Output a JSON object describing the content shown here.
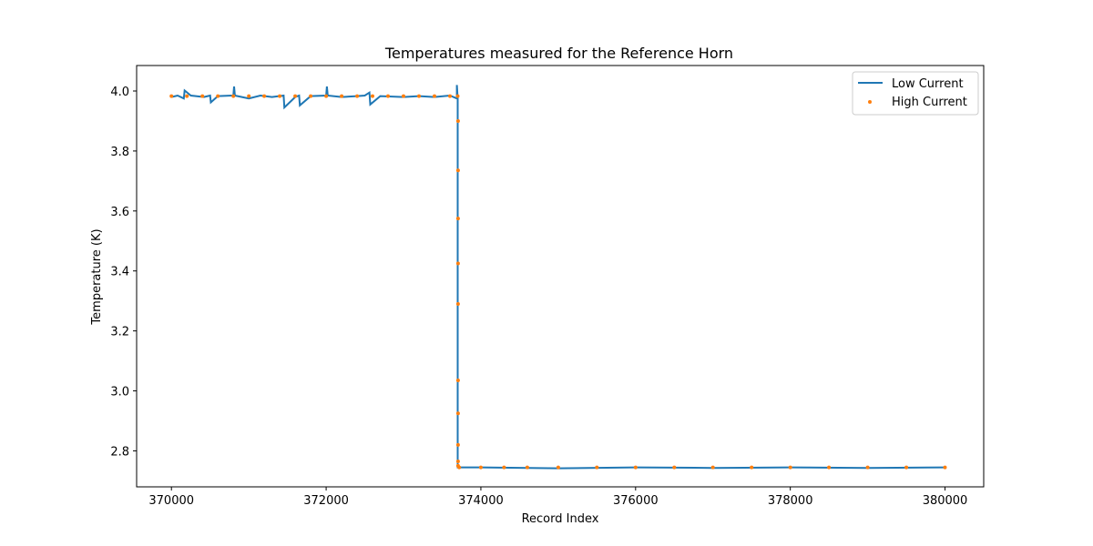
{
  "chart_data": {
    "type": "line",
    "title": "Temperatures measured for the Reference Horn",
    "xlabel": "Record Index",
    "ylabel": "Temperature (K)",
    "xlim": [
      369550,
      380500
    ],
    "ylim": [
      2.68,
      4.085
    ],
    "xticks": [
      370000,
      372000,
      374000,
      376000,
      378000,
      380000
    ],
    "xtick_labels": [
      "370000",
      "372000",
      "374000",
      "376000",
      "378000",
      "380000"
    ],
    "yticks": [
      2.8,
      3.0,
      3.2,
      3.4,
      3.6,
      3.8,
      4.0
    ],
    "ytick_labels": [
      "2.8",
      "3.0",
      "3.2",
      "3.4",
      "3.6",
      "3.8",
      "4.0"
    ],
    "grid": false,
    "legend_position": "top-right",
    "colors": {
      "low": "#1f77b4",
      "high": "#ff7f0e"
    },
    "series": [
      {
        "name": "Low Current",
        "kind": "line",
        "x": [
          370000,
          370080,
          370160,
          370170,
          370250,
          370420,
          370500,
          370510,
          370600,
          370800,
          370810,
          370820,
          371000,
          371150,
          371300,
          371450,
          371460,
          371600,
          371650,
          371660,
          371800,
          372000,
          372010,
          372020,
          372200,
          372400,
          372500,
          372560,
          372570,
          372700,
          373000,
          373200,
          373400,
          373600,
          373690,
          373690,
          373700,
          373700,
          374000,
          375000,
          376000,
          377000,
          378000,
          379000,
          380000
        ],
        "y": [
          3.98,
          3.985,
          3.975,
          4.002,
          3.985,
          3.98,
          3.985,
          3.962,
          3.983,
          3.985,
          4.015,
          3.985,
          3.975,
          3.985,
          3.98,
          3.985,
          3.945,
          3.98,
          3.985,
          3.952,
          3.983,
          3.985,
          4.015,
          3.985,
          3.98,
          3.983,
          3.985,
          3.995,
          3.955,
          3.983,
          3.98,
          3.983,
          3.98,
          3.985,
          3.975,
          4.02,
          3.975,
          2.745,
          2.745,
          2.742,
          2.745,
          2.743,
          2.745,
          2.743,
          2.745
        ]
      },
      {
        "name": "High Current",
        "kind": "scatter",
        "x": [
          370000,
          370200,
          370400,
          370600,
          370800,
          371000,
          371200,
          371400,
          371600,
          371800,
          372000,
          372200,
          372400,
          372600,
          372800,
          373000,
          373200,
          373400,
          373600,
          373700,
          373705,
          373705,
          373705,
          373705,
          373705,
          373705,
          373705,
          373705,
          373705,
          373705,
          373720,
          374000,
          374300,
          374600,
          375000,
          375500,
          376000,
          376500,
          377000,
          377500,
          378000,
          378500,
          379000,
          379500,
          380000
        ],
        "y": [
          3.983,
          3.983,
          3.983,
          3.983,
          3.983,
          3.983,
          3.983,
          3.983,
          3.983,
          3.983,
          3.983,
          3.983,
          3.983,
          3.983,
          3.983,
          3.983,
          3.983,
          3.983,
          3.983,
          3.983,
          3.9,
          3.735,
          3.575,
          3.425,
          3.29,
          3.035,
          2.925,
          2.82,
          2.765,
          2.75,
          2.745,
          2.745,
          2.745,
          2.745,
          2.745,
          2.745,
          2.745,
          2.745,
          2.745,
          2.745,
          2.745,
          2.745,
          2.745,
          2.745,
          2.745
        ]
      }
    ]
  }
}
